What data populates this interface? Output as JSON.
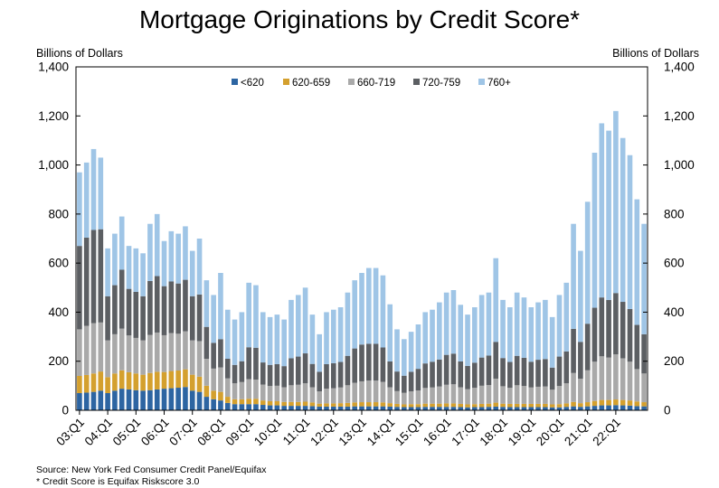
{
  "header": {
    "title": "Mortgage Originations by Credit Score*",
    "left_unit": "Billions of Dollars",
    "right_unit": "Billions of Dollars"
  },
  "footer": {
    "source": "Source: New York Fed Consumer Credit Panel/Equifax",
    "note": "* Credit Score is Equifax Riskscore 3.0"
  },
  "chart_data": {
    "type": "bar",
    "stacked": true,
    "title": "Mortgage Originations by Credit Score*",
    "ylabel": "Billions of Dollars",
    "ylim": [
      0,
      1400
    ],
    "yticks": [
      0,
      200,
      400,
      600,
      800,
      1000,
      1200,
      1400
    ],
    "ytick_labels": [
      "0",
      "200",
      "400",
      "600",
      "800",
      "1,000",
      "1,200",
      "1,400"
    ],
    "xtick_labels": [
      "03:Q1",
      "04:Q1",
      "05:Q1",
      "06:Q1",
      "07:Q1",
      "08:Q1",
      "09:Q1",
      "10:Q1",
      "11:Q1",
      "12:Q1",
      "13:Q1",
      "14:Q1",
      "15:Q1",
      "16:Q1",
      "17:Q1",
      "18:Q1",
      "19:Q1",
      "20:Q1",
      "21:Q1",
      "22:Q1"
    ],
    "legend_position": "top-center",
    "totals": [
      970,
      1010,
      1065,
      1030,
      660,
      720,
      790,
      670,
      660,
      640,
      760,
      800,
      690,
      730,
      720,
      750,
      650,
      700,
      530,
      470,
      560,
      410,
      370,
      400,
      520,
      510,
      400,
      380,
      390,
      370,
      450,
      470,
      500,
      390,
      310,
      400,
      410,
      420,
      480,
      530,
      560,
      580,
      580,
      550,
      430,
      330,
      290,
      320,
      350,
      400,
      410,
      440,
      480,
      490,
      430,
      390,
      420,
      470,
      480,
      620,
      450,
      420,
      480,
      460,
      420,
      440,
      450,
      380,
      470,
      520,
      760,
      650,
      850,
      1050,
      1170,
      1140,
      1220,
      1110,
      1040,
      860,
      760
    ],
    "series": [
      {
        "name": "<620",
        "color": "#2d65a2",
        "values": [
          70,
          72,
          75,
          80,
          70,
          80,
          88,
          85,
          82,
          80,
          82,
          85,
          88,
          90,
          92,
          95,
          80,
          75,
          55,
          45,
          40,
          30,
          25,
          25,
          25,
          25,
          22,
          20,
          20,
          18,
          18,
          18,
          18,
          17,
          15,
          15,
          15,
          15,
          15,
          16,
          16,
          16,
          16,
          16,
          15,
          14,
          13,
          13,
          13,
          14,
          14,
          14,
          14,
          14,
          13,
          12,
          13,
          13,
          14,
          15,
          14,
          13,
          13,
          13,
          13,
          13,
          13,
          12,
          12,
          14,
          16,
          14,
          16,
          18,
          20,
          20,
          21,
          20,
          19,
          17,
          16
        ]
      },
      {
        "name": "620-659",
        "color": "#d4a02e",
        "values": [
          70,
          72,
          75,
          78,
          65,
          70,
          75,
          70,
          68,
          65,
          70,
          72,
          68,
          70,
          70,
          72,
          65,
          62,
          45,
          35,
          35,
          25,
          20,
          20,
          22,
          22,
          18,
          17,
          17,
          16,
          16,
          16,
          17,
          15,
          12,
          13,
          13,
          14,
          15,
          16,
          17,
          17,
          17,
          16,
          14,
          12,
          11,
          12,
          12,
          13,
          13,
          13,
          14,
          14,
          13,
          12,
          12,
          13,
          13,
          16,
          13,
          13,
          13,
          13,
          13,
          13,
          13,
          12,
          13,
          14,
          18,
          15,
          17,
          20,
          22,
          22,
          23,
          22,
          21,
          19,
          17
        ]
      },
      {
        "name": "660-719",
        "color": "#a9a9a9",
        "values": [
          190,
          200,
          205,
          200,
          150,
          160,
          170,
          150,
          145,
          140,
          155,
          160,
          150,
          155,
          150,
          155,
          140,
          145,
          110,
          90,
          100,
          75,
          65,
          70,
          80,
          78,
          65,
          62,
          63,
          60,
          68,
          70,
          75,
          62,
          50,
          60,
          62,
          64,
          72,
          80,
          85,
          88,
          88,
          84,
          65,
          52,
          47,
          52,
          56,
          64,
          66,
          70,
          76,
          78,
          68,
          62,
          67,
          74,
          76,
          98,
          71,
          66,
          76,
          73,
          67,
          70,
          71,
          60,
          74,
          82,
          118,
          100,
          130,
          160,
          178,
          173,
          184,
          170,
          158,
          132,
          117
        ]
      },
      {
        "name": "720-759",
        "color": "#5c5f63",
        "values": [
          340,
          360,
          380,
          380,
          180,
          200,
          240,
          190,
          188,
          180,
          220,
          230,
          200,
          210,
          205,
          210,
          180,
          190,
          130,
          105,
          115,
          80,
          75,
          85,
          130,
          130,
          90,
          86,
          88,
          86,
          110,
          115,
          122,
          95,
          80,
          100,
          102,
          104,
          120,
          140,
          150,
          150,
          150,
          140,
          105,
          80,
          70,
          80,
          88,
          100,
          105,
          110,
          122,
          125,
          105,
          95,
          102,
          115,
          120,
          150,
          115,
          105,
          120,
          115,
          105,
          110,
          112,
          90,
          120,
          130,
          180,
          150,
          190,
          220,
          240,
          235,
          250,
          230,
          215,
          180,
          160
        ]
      },
      {
        "name": "760+",
        "color": "#9fc5e6",
        "values": [
          300,
          306,
          330,
          292,
          195,
          210,
          217,
          175,
          177,
          175,
          233,
          253,
          184,
          205,
          203,
          218,
          185,
          228,
          190,
          195,
          270,
          200,
          185,
          200,
          263,
          255,
          205,
          195,
          202,
          190,
          238,
          251,
          268,
          201,
          153,
          212,
          218,
          223,
          258,
          278,
          292,
          309,
          309,
          294,
          233,
          172,
          149,
          163,
          181,
          209,
          212,
          233,
          254,
          259,
          231,
          209,
          226,
          255,
          257,
          341,
          237,
          223,
          258,
          246,
          222,
          234,
          241,
          206,
          251,
          280,
          428,
          371,
          497,
          632,
          710,
          690,
          742,
          668,
          627,
          512,
          450
        ]
      }
    ]
  }
}
